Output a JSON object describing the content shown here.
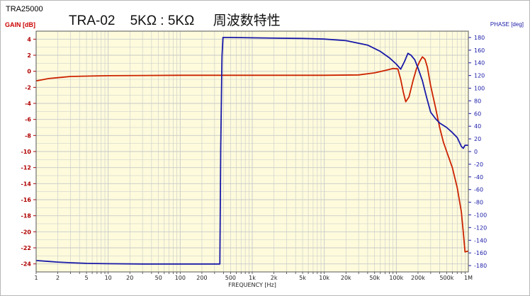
{
  "header": {
    "model_code": "TRA25000",
    "title": "TRA-02    5KΩ : 5KΩ     周波数特性"
  },
  "chart_data": {
    "type": "line",
    "title": "TRA-02    5KΩ : 5KΩ     周波数特性",
    "xlabel": "FREQUENCY [Hz]",
    "ylabel": "GAIN [dB]",
    "y2label": "PHASE [deg]",
    "xscale": "log",
    "xlim": [
      1,
      1000000
    ],
    "ylim": [
      -25,
      5
    ],
    "y2lim": [
      -190,
      190
    ],
    "x_tick_values": [
      1,
      2,
      5,
      10,
      20,
      50,
      100,
      200,
      500,
      1000,
      2000,
      5000,
      10000,
      20000,
      50000,
      100000,
      200000,
      500000,
      1000000
    ],
    "x_tick_labels": [
      "1",
      "2",
      "5",
      "10",
      "20",
      "50",
      "100",
      "200",
      "500",
      "1k",
      "2k",
      "5k",
      "10k",
      "20k",
      "50k",
      "100k",
      "200k",
      "500k",
      "1M"
    ],
    "y_ticks": [
      4,
      2,
      0,
      -2,
      -4,
      -6,
      -8,
      -10,
      -12,
      -14,
      -16,
      -18,
      -20,
      -22,
      -24
    ],
    "y2_ticks": [
      180,
      160,
      140,
      120,
      100,
      80,
      60,
      40,
      20,
      0,
      -20,
      -40,
      -60,
      -80,
      -100,
      -120,
      -140,
      -160,
      -180
    ],
    "grid": true,
    "background": "#fdfbdc",
    "grid_color": "#c9c9c9",
    "series": [
      {
        "axis": "left",
        "color": "#cc2200",
        "points": [
          [
            1,
            -1.2
          ],
          [
            1.5,
            -0.9
          ],
          [
            2,
            -0.8
          ],
          [
            3,
            -0.65
          ],
          [
            5,
            -0.6
          ],
          [
            10,
            -0.55
          ],
          [
            30,
            -0.52
          ],
          [
            100,
            -0.5
          ],
          [
            1000,
            -0.5
          ],
          [
            10000,
            -0.5
          ],
          [
            30000,
            -0.45
          ],
          [
            50000,
            -0.2
          ],
          [
            70000,
            0.1
          ],
          [
            90000,
            0.35
          ],
          [
            105000,
            0.3
          ],
          [
            115000,
            -1.0
          ],
          [
            125000,
            -2.6
          ],
          [
            135000,
            -3.8
          ],
          [
            150000,
            -3.2
          ],
          [
            170000,
            -1.2
          ],
          [
            190000,
            0.3
          ],
          [
            210000,
            1.2
          ],
          [
            230000,
            1.8
          ],
          [
            250000,
            1.5
          ],
          [
            270000,
            0.5
          ],
          [
            300000,
            -1.8
          ],
          [
            350000,
            -4.5
          ],
          [
            400000,
            -7.0
          ],
          [
            450000,
            -8.8
          ],
          [
            500000,
            -10.0
          ],
          [
            600000,
            -12.0
          ],
          [
            700000,
            -14.5
          ],
          [
            800000,
            -17.5
          ],
          [
            850000,
            -20.0
          ],
          [
            900000,
            -22.5
          ],
          [
            1000000,
            -22.4
          ]
        ]
      },
      {
        "axis": "right",
        "color": "#1a1aa8",
        "points": [
          [
            1,
            -172
          ],
          [
            1.5,
            -173.5
          ],
          [
            2,
            -174.5
          ],
          [
            3,
            -175.5
          ],
          [
            5,
            -176.5
          ],
          [
            10,
            -177
          ],
          [
            30,
            -177.5
          ],
          [
            100,
            -177.5
          ],
          [
            300,
            -177.5
          ],
          [
            355,
            -177.5
          ],
          [
            365,
            5
          ],
          [
            380,
            150
          ],
          [
            392,
            180
          ],
          [
            500,
            180
          ],
          [
            1000,
            179.5
          ],
          [
            5000,
            178.5
          ],
          [
            10000,
            177.5
          ],
          [
            20000,
            175
          ],
          [
            40000,
            168
          ],
          [
            60000,
            158
          ],
          [
            80000,
            148
          ],
          [
            100000,
            138
          ],
          [
            115000,
            130
          ],
          [
            130000,
            142
          ],
          [
            145000,
            155
          ],
          [
            160000,
            152
          ],
          [
            180000,
            145
          ],
          [
            200000,
            132
          ],
          [
            230000,
            112
          ],
          [
            260000,
            88
          ],
          [
            300000,
            62
          ],
          [
            350000,
            52
          ],
          [
            400000,
            45
          ],
          [
            500000,
            38
          ],
          [
            600000,
            30
          ],
          [
            700000,
            22
          ],
          [
            800000,
            8
          ],
          [
            850000,
            5
          ],
          [
            900000,
            10
          ],
          [
            1000000,
            10
          ]
        ]
      }
    ]
  }
}
